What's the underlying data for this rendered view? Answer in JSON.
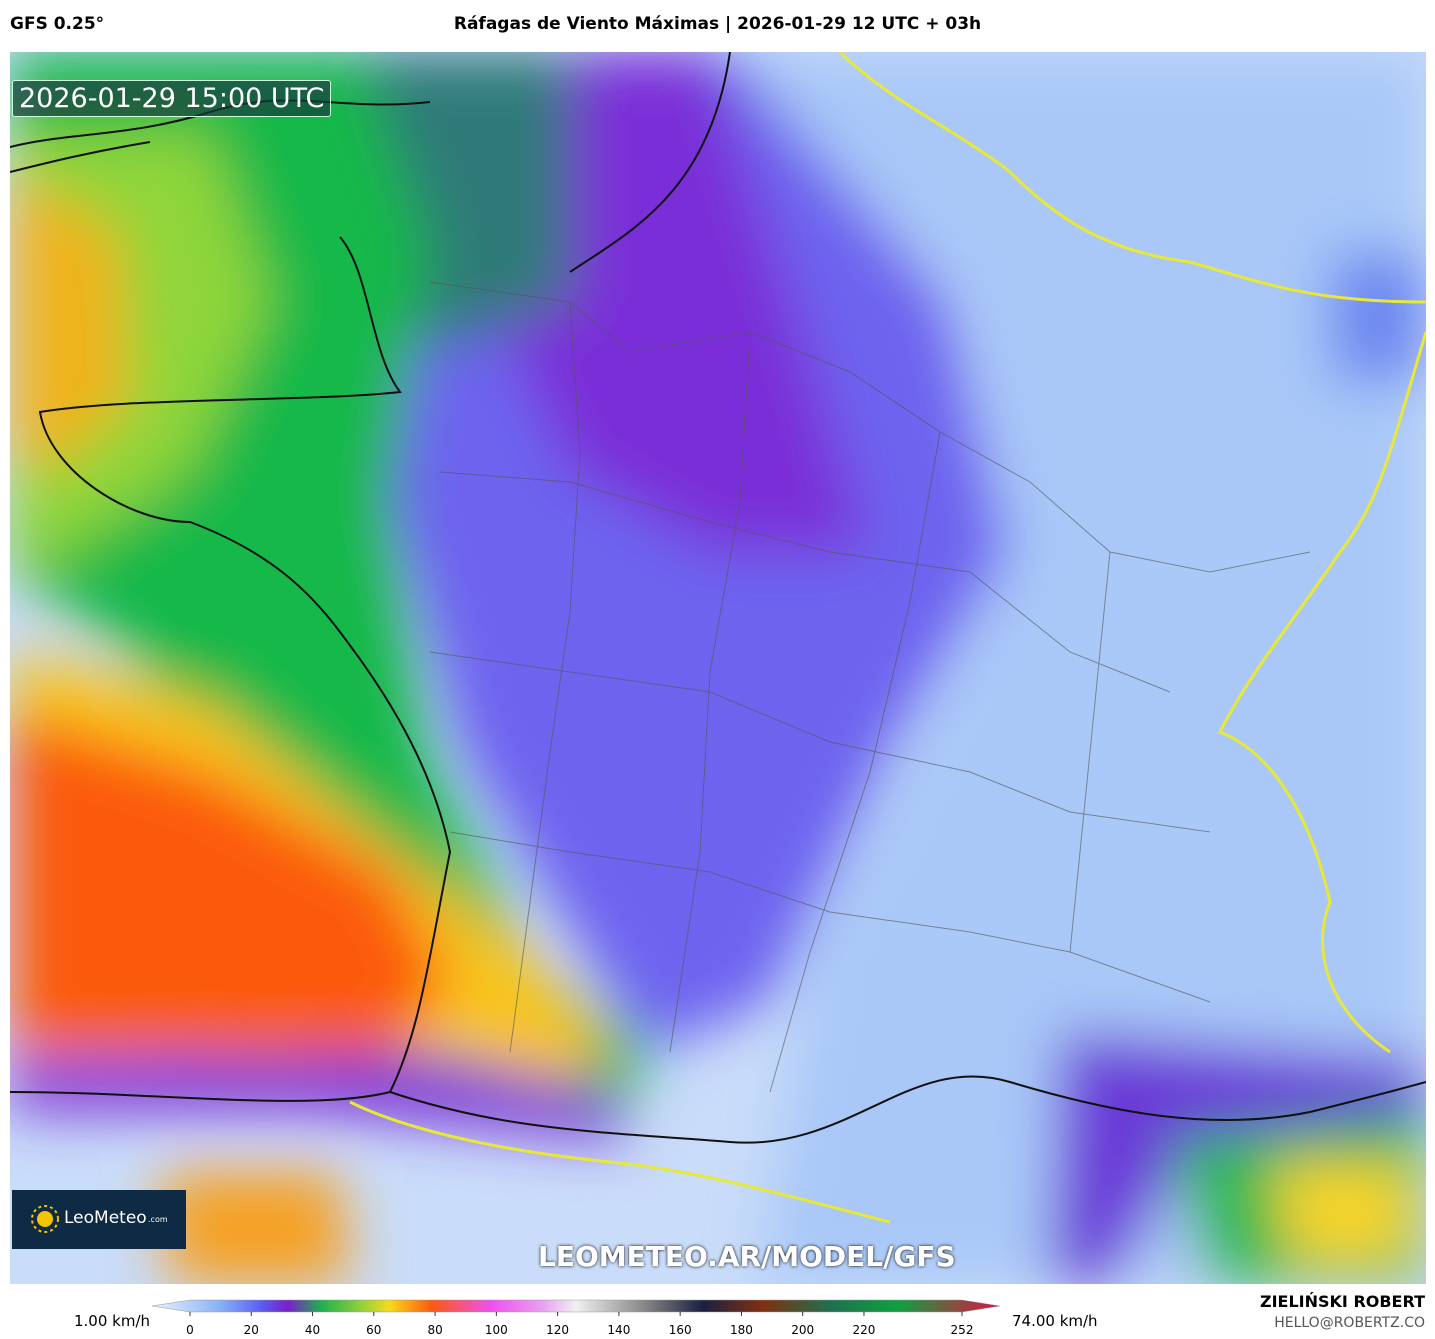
{
  "header": {
    "model": "GFS 0.25°",
    "title": "Ráfagas de Viento Máximas | 2026-01-29 12 UTC + 03h"
  },
  "map": {
    "timestamp": "2026-01-29 15:00 UTC",
    "logo": {
      "name": "LeoMeteo",
      "suffix": ".com"
    },
    "watermark": "LEOMETEO.AR/MODEL/GFS"
  },
  "colorbar": {
    "min_label": "1.00 km/h",
    "max_label": "74.00 km/h",
    "range": [
      0,
      252
    ],
    "ticks": [
      0,
      20,
      40,
      60,
      80,
      100,
      120,
      140,
      160,
      180,
      200,
      220,
      252
    ]
  },
  "credits": {
    "author": "ZIELIŃSKI ROBERT",
    "email": "HELLO@ROBERTZ.CO"
  }
}
